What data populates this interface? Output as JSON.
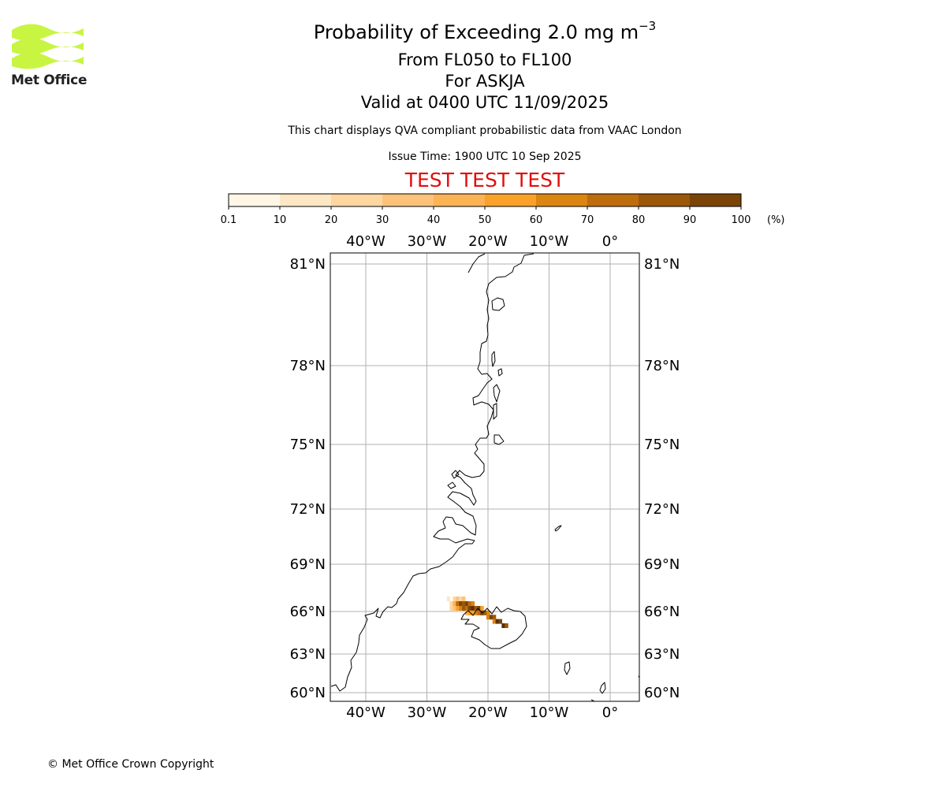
{
  "logo": {
    "name": "met-office-logo",
    "text": "Met Office",
    "color": "#c8f542"
  },
  "header": {
    "title_main": "Probability of Exceeding 2.0 mg m",
    "title_sup": "−3",
    "level_range": "From FL050 to FL100",
    "volcano": "For ASKJA",
    "valid_time": "Valid at 0400 UTC 11/09/2025",
    "disclaimer": "This chart displays QVA compliant probabilistic data from VAAC London",
    "issue_time": "Issue Time: 1900 UTC 10 Sep 2025",
    "test_banner": "TEST TEST TEST"
  },
  "colorbar": {
    "tick_labels": [
      "0.1",
      "10",
      "20",
      "30",
      "40",
      "50",
      "60",
      "70",
      "80",
      "90",
      "100"
    ],
    "unit": "(%)",
    "colors": [
      "#fff7e6",
      "#fee7c4",
      "#fed6a0",
      "#fdc27a",
      "#fcb354",
      "#faa12a",
      "#db8512",
      "#be6d0c",
      "#9c5709",
      "#7a4407",
      "#573005"
    ]
  },
  "map": {
    "lon_labels": [
      "40°W",
      "30°W",
      "20°W",
      "10°W",
      "0°"
    ],
    "lat_labels": [
      "81°N",
      "78°N",
      "75°N",
      "72°N",
      "69°N",
      "66°N",
      "63°N",
      "60°N"
    ],
    "lon_values": [
      -40,
      -30,
      -20,
      -10,
      0
    ],
    "lat_values": [
      81,
      78,
      75,
      72,
      69,
      66,
      63,
      60
    ],
    "grid": true,
    "grid_color": "#b0b0b0",
    "plume_cells": [
      {
        "lon": -26.5,
        "lat": 66.8,
        "p": 5
      },
      {
        "lon": -26.0,
        "lat": 66.5,
        "p": 15
      },
      {
        "lon": -26.0,
        "lat": 66.2,
        "p": 12
      },
      {
        "lon": -25.5,
        "lat": 66.8,
        "p": 15
      },
      {
        "lon": -25.5,
        "lat": 66.5,
        "p": 35
      },
      {
        "lon": -25.5,
        "lat": 66.2,
        "p": 25
      },
      {
        "lon": -25.0,
        "lat": 66.8,
        "p": 20
      },
      {
        "lon": -25.0,
        "lat": 66.5,
        "p": 65
      },
      {
        "lon": -25.0,
        "lat": 66.2,
        "p": 40
      },
      {
        "lon": -24.5,
        "lat": 66.8,
        "p": 18
      },
      {
        "lon": -24.5,
        "lat": 66.5,
        "p": 85
      },
      {
        "lon": -24.5,
        "lat": 66.2,
        "p": 55
      },
      {
        "lon": -24.0,
        "lat": 66.8,
        "p": 25
      },
      {
        "lon": -24.0,
        "lat": 66.5,
        "p": 75
      },
      {
        "lon": -24.0,
        "lat": 66.2,
        "p": 70
      },
      {
        "lon": -23.5,
        "lat": 66.5,
        "p": 85
      },
      {
        "lon": -23.5,
        "lat": 66.2,
        "p": 60
      },
      {
        "lon": -23.5,
        "lat": 65.9,
        "p": 30
      },
      {
        "lon": -23.0,
        "lat": 66.5,
        "p": 65
      },
      {
        "lon": -23.0,
        "lat": 66.2,
        "p": 80
      },
      {
        "lon": -23.0,
        "lat": 65.9,
        "p": 40
      },
      {
        "lon": -22.5,
        "lat": 66.5,
        "p": 55
      },
      {
        "lon": -22.5,
        "lat": 66.2,
        "p": 90
      },
      {
        "lon": -22.5,
        "lat": 65.9,
        "p": 45
      },
      {
        "lon": -22.0,
        "lat": 66.2,
        "p": 75
      },
      {
        "lon": -22.0,
        "lat": 65.9,
        "p": 55
      },
      {
        "lon": -21.5,
        "lat": 66.2,
        "p": 85
      },
      {
        "lon": -21.5,
        "lat": 65.9,
        "p": 60
      },
      {
        "lon": -21.0,
        "lat": 66.2,
        "p": 45
      },
      {
        "lon": -21.0,
        "lat": 65.9,
        "p": 80
      },
      {
        "lon": -20.5,
        "lat": 65.9,
        "p": 70
      },
      {
        "lon": -20.0,
        "lat": 65.9,
        "p": 55
      },
      {
        "lon": -20.0,
        "lat": 65.6,
        "p": 50
      },
      {
        "lon": -19.5,
        "lat": 65.6,
        "p": 85
      },
      {
        "lon": -19.0,
        "lat": 65.6,
        "p": 75
      },
      {
        "lon": -19.0,
        "lat": 65.3,
        "p": 50
      },
      {
        "lon": -18.5,
        "lat": 65.3,
        "p": 90
      },
      {
        "lon": -18.0,
        "lat": 65.3,
        "p": 80
      },
      {
        "lon": -17.5,
        "lat": 65.0,
        "p": 95
      },
      {
        "lon": -17.0,
        "lat": 65.0,
        "p": 75
      }
    ]
  }
}
